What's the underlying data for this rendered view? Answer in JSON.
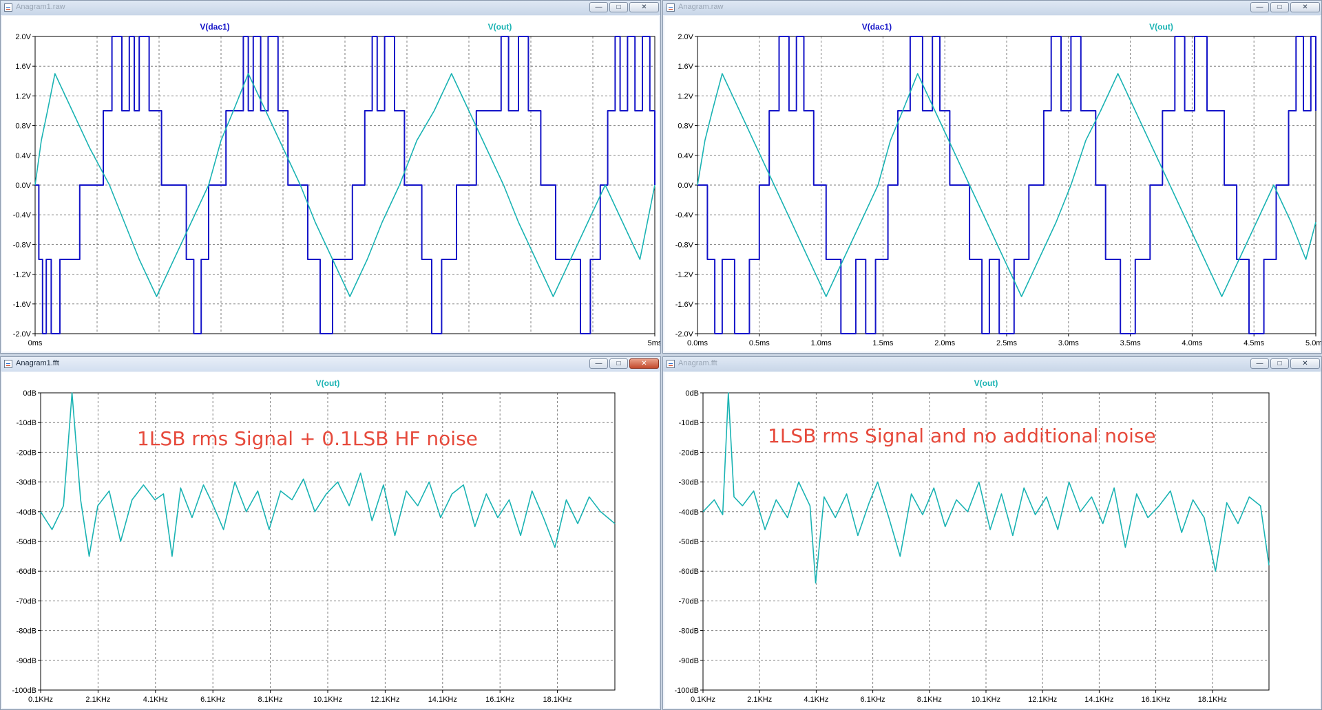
{
  "windows": [
    {
      "title": "Anagram1.raw",
      "active": false
    },
    {
      "title": "Anagram.raw",
      "active": false
    },
    {
      "title": "Anagram1.fft",
      "active": true
    },
    {
      "title": "Anagram.fft",
      "active": false
    }
  ],
  "window_buttons": {
    "minimize": "—",
    "maximize": "□",
    "close": "✕"
  },
  "icons": {
    "app": "ltspice-waveform-icon",
    "minimize": "minimize-icon",
    "maximize": "maximize-icon",
    "close": "close-icon"
  },
  "annotations": [
    {
      "text": "1LSB rms Signal + 0.1LSB HF noise"
    },
    {
      "text": "1LSB rms Signal  and no additional noise"
    }
  ],
  "chart_data": [
    {
      "type": "line",
      "legend": [
        "V(dac1)",
        "V(out)"
      ],
      "colors": {
        "V(dac1)": "#1414c8",
        "V(out)": "#1ab3b3",
        "grid": "#7f7f7f"
      },
      "xlim": [
        0,
        5
      ],
      "ylim": [
        -2,
        2
      ],
      "x_ticks": [
        "0ms",
        "5ms"
      ],
      "y_ticks": [
        "2.0V",
        "1.6V",
        "1.2V",
        "0.8V",
        "0.4V",
        "0.0V",
        "-0.4V",
        "-0.8V",
        "-1.2V",
        "-1.6V",
        "-2.0V"
      ],
      "x_grid_count": 10,
      "series": [
        {
          "name": "V(dac1)",
          "x": [
            0,
            0.03,
            0.06,
            0.09,
            0.13,
            0.2,
            0.36,
            0.55,
            0.62,
            0.7,
            0.76,
            0.8,
            0.84,
            0.92,
            1.02,
            1.22,
            1.28,
            1.34,
            1.4,
            1.54,
            1.68,
            1.72,
            1.76,
            1.82,
            1.88,
            1.96,
            2.04,
            2.2,
            2.3,
            2.4,
            2.56,
            2.66,
            2.72,
            2.76,
            2.82,
            2.9,
            2.98,
            3.12,
            3.2,
            3.28,
            3.4,
            3.56,
            3.76,
            3.82,
            3.9,
            3.98,
            4.08,
            4.2,
            4.4,
            4.48,
            4.56,
            4.62,
            4.68,
            4.72,
            4.78,
            4.84,
            4.9,
            4.96,
            5.0
          ],
          "values": [
            0,
            -1,
            -2,
            -1,
            -2,
            -1,
            0,
            1,
            2,
            1,
            2,
            1,
            2,
            1,
            0,
            -1,
            -2,
            -1,
            0,
            1,
            2,
            1,
            2,
            1,
            2,
            1,
            0,
            -1,
            -2,
            -1,
            0,
            1,
            2,
            1,
            2,
            1,
            0,
            -1,
            -2,
            -1,
            0,
            1,
            2,
            1,
            2,
            1,
            0,
            -1,
            -2,
            -1,
            0,
            1,
            2,
            1,
            2,
            1,
            2,
            1,
            0
          ]
        },
        {
          "name": "V(out)",
          "x": [
            0,
            0.05,
            0.1,
            0.16,
            0.3,
            0.44,
            0.6,
            0.72,
            0.84,
            0.98,
            1.12,
            1.26,
            1.4,
            1.5,
            1.6,
            1.72,
            1.86,
            2.0,
            2.14,
            2.26,
            2.4,
            2.54,
            2.68,
            2.8,
            2.94,
            3.08,
            3.22,
            3.36,
            3.5,
            3.64,
            3.78,
            3.9,
            4.04,
            4.18,
            4.32,
            4.46,
            4.6,
            4.74,
            4.88,
            5.0
          ],
          "values": [
            0,
            0.6,
            1.0,
            1.5,
            1.0,
            0.5,
            0,
            -0.5,
            -1.0,
            -1.5,
            -1.0,
            -0.5,
            0,
            0.6,
            1.0,
            1.5,
            1.0,
            0.5,
            0,
            -0.5,
            -1.0,
            -1.5,
            -1.0,
            -0.5,
            0,
            0.6,
            1.0,
            1.5,
            1.0,
            0.5,
            0,
            -0.5,
            -1.0,
            -1.5,
            -1.0,
            -0.5,
            0,
            -0.5,
            -1.0,
            0
          ]
        }
      ]
    },
    {
      "type": "line",
      "legend": [
        "V(dac1)",
        "V(out)"
      ],
      "colors": {
        "V(dac1)": "#1414c8",
        "V(out)": "#1ab3b3",
        "grid": "#7f7f7f"
      },
      "xlim": [
        0,
        5
      ],
      "ylim": [
        -2,
        2
      ],
      "x_ticks": [
        "0.0ms",
        "0.5ms",
        "1.0ms",
        "1.5ms",
        "2.0ms",
        "2.5ms",
        "3.0ms",
        "3.5ms",
        "4.0ms",
        "4.5ms",
        "5.0ms"
      ],
      "y_ticks": [
        "2.0V",
        "1.6V",
        "1.2V",
        "0.8V",
        "0.4V",
        "0.0V",
        "-0.4V",
        "-0.8V",
        "-1.2V",
        "-1.6V",
        "-2.0V"
      ],
      "x_grid_count": 10,
      "series": [
        {
          "name": "V(dac1)",
          "x": [
            0,
            0.08,
            0.14,
            0.2,
            0.3,
            0.42,
            0.5,
            0.58,
            0.66,
            0.74,
            0.8,
            0.86,
            0.94,
            1.04,
            1.16,
            1.28,
            1.36,
            1.44,
            1.54,
            1.62,
            1.72,
            1.82,
            1.9,
            1.96,
            2.04,
            2.2,
            2.3,
            2.36,
            2.44,
            2.56,
            2.68,
            2.8,
            2.86,
            2.94,
            3.02,
            3.1,
            3.22,
            3.3,
            3.42,
            3.54,
            3.66,
            3.76,
            3.86,
            3.94,
            4.02,
            4.12,
            4.26,
            4.36,
            4.46,
            4.58,
            4.68,
            4.78,
            4.84,
            4.9,
            4.96,
            5.0
          ],
          "values": [
            0,
            -1,
            -2,
            -1,
            -2,
            -1,
            0,
            1,
            2,
            1,
            2,
            1,
            0,
            -1,
            -2,
            -1,
            -2,
            -1,
            0,
            1,
            2,
            1,
            2,
            1,
            0,
            -1,
            -2,
            -1,
            -2,
            -1,
            0,
            1,
            2,
            1,
            2,
            1,
            0,
            -1,
            -2,
            -1,
            0,
            1,
            2,
            1,
            2,
            1,
            0,
            -1,
            -2,
            -1,
            0,
            1,
            2,
            1,
            2,
            1
          ]
        },
        {
          "name": "V(out)",
          "x": [
            0,
            0.06,
            0.12,
            0.2,
            0.34,
            0.48,
            0.62,
            0.76,
            0.9,
            1.04,
            1.18,
            1.32,
            1.46,
            1.56,
            1.66,
            1.78,
            1.92,
            2.06,
            2.2,
            2.34,
            2.48,
            2.62,
            2.76,
            2.9,
            3.02,
            3.14,
            3.26,
            3.4,
            3.54,
            3.68,
            3.82,
            3.96,
            4.1,
            4.24,
            4.38,
            4.52,
            4.66,
            4.8,
            4.92,
            5.0
          ],
          "values": [
            0,
            0.6,
            1.0,
            1.5,
            1.0,
            0.5,
            0,
            -0.5,
            -1.0,
            -1.5,
            -1.0,
            -0.5,
            0,
            0.6,
            1.0,
            1.5,
            1.0,
            0.5,
            0,
            -0.5,
            -1.0,
            -1.5,
            -1.0,
            -0.5,
            0,
            0.6,
            1.0,
            1.5,
            1.0,
            0.5,
            0,
            -0.5,
            -1.0,
            -1.5,
            -1.0,
            -0.5,
            0,
            -0.5,
            -1.0,
            -0.5
          ]
        }
      ]
    },
    {
      "type": "line",
      "legend": [
        "V(out)"
      ],
      "colors": {
        "V(out)": "#1ab3b3",
        "grid": "#7f7f7f"
      },
      "xlim": [
        0.1,
        20.2
      ],
      "ylim": [
        -100,
        0
      ],
      "x_ticks": [
        "0.1KHz",
        "2.1KHz",
        "4.1KHz",
        "6.1KHz",
        "8.1KHz",
        "10.1KHz",
        "12.1KHz",
        "14.1KHz",
        "16.1KHz",
        "18.1KHz"
      ],
      "y_ticks": [
        "0dB",
        "-10dB",
        "-20dB",
        "-30dB",
        "-40dB",
        "-50dB",
        "-60dB",
        "-70dB",
        "-80dB",
        "-90dB",
        "-100dB"
      ],
      "x_grid_count": 10,
      "series": [
        {
          "name": "V(out)",
          "x": [
            0.1,
            0.5,
            0.9,
            1.2,
            1.5,
            1.8,
            2.1,
            2.5,
            2.9,
            3.3,
            3.7,
            4.1,
            4.4,
            4.7,
            5.0,
            5.4,
            5.8,
            6.1,
            6.5,
            6.9,
            7.3,
            7.7,
            8.1,
            8.5,
            8.9,
            9.3,
            9.7,
            10.1,
            10.5,
            10.9,
            11.3,
            11.7,
            12.1,
            12.5,
            12.9,
            13.3,
            13.7,
            14.1,
            14.5,
            14.9,
            15.3,
            15.7,
            16.1,
            16.5,
            16.9,
            17.3,
            17.7,
            18.1,
            18.5,
            18.9,
            19.3,
            19.7,
            20.2
          ],
          "values": [
            -40,
            -46,
            -38,
            0,
            -36,
            -55,
            -38,
            -33,
            -50,
            -36,
            -31,
            -36,
            -34,
            -55,
            -32,
            -42,
            -31,
            -37,
            -46,
            -30,
            -40,
            -33,
            -46,
            -33,
            -36,
            -29,
            -40,
            -34,
            -30,
            -38,
            -27,
            -43,
            -31,
            -48,
            -33,
            -38,
            -30,
            -42,
            -34,
            -31,
            -45,
            -34,
            -42,
            -36,
            -48,
            -33,
            -42,
            -52,
            -36,
            -44,
            -35,
            -40,
            -44
          ]
        }
      ]
    },
    {
      "type": "line",
      "legend": [
        "V(out)"
      ],
      "colors": {
        "V(out)": "#1ab3b3",
        "grid": "#7f7f7f"
      },
      "xlim": [
        0.1,
        20.2
      ],
      "ylim": [
        -100,
        0
      ],
      "x_ticks": [
        "0.1KHz",
        "2.1KHz",
        "4.1KHz",
        "6.1KHz",
        "8.1KHz",
        "10.1KHz",
        "12.1KHz",
        "14.1KHz",
        "16.1KHz",
        "18.1KHz"
      ],
      "y_ticks": [
        "0dB",
        "-10dB",
        "-20dB",
        "-30dB",
        "-40dB",
        "-50dB",
        "-60dB",
        "-70dB",
        "-80dB",
        "-90dB",
        "-100dB"
      ],
      "x_grid_count": 10,
      "series": [
        {
          "name": "V(out)",
          "x": [
            0.1,
            0.5,
            0.8,
            1.0,
            1.2,
            1.5,
            1.9,
            2.3,
            2.7,
            3.1,
            3.5,
            3.9,
            4.1,
            4.4,
            4.8,
            5.2,
            5.6,
            6.0,
            6.3,
            6.7,
            7.1,
            7.5,
            7.9,
            8.3,
            8.7,
            9.1,
            9.5,
            9.9,
            10.3,
            10.7,
            11.1,
            11.5,
            11.9,
            12.3,
            12.7,
            13.1,
            13.5,
            13.9,
            14.3,
            14.7,
            15.1,
            15.5,
            15.9,
            16.3,
            16.7,
            17.1,
            17.5,
            17.9,
            18.3,
            18.7,
            19.1,
            19.5,
            19.9,
            20.2
          ],
          "values": [
            -40,
            -36,
            -41,
            0,
            -35,
            -38,
            -33,
            -46,
            -36,
            -42,
            -30,
            -38,
            -64,
            -35,
            -42,
            -34,
            -48,
            -37,
            -30,
            -42,
            -55,
            -34,
            -41,
            -32,
            -45,
            -36,
            -40,
            -30,
            -46,
            -34,
            -48,
            -32,
            -41,
            -35,
            -46,
            -30,
            -40,
            -35,
            -44,
            -32,
            -52,
            -34,
            -42,
            -38,
            -33,
            -47,
            -36,
            -42,
            -60,
            -37,
            -44,
            -35,
            -38,
            -58
          ]
        }
      ]
    }
  ]
}
